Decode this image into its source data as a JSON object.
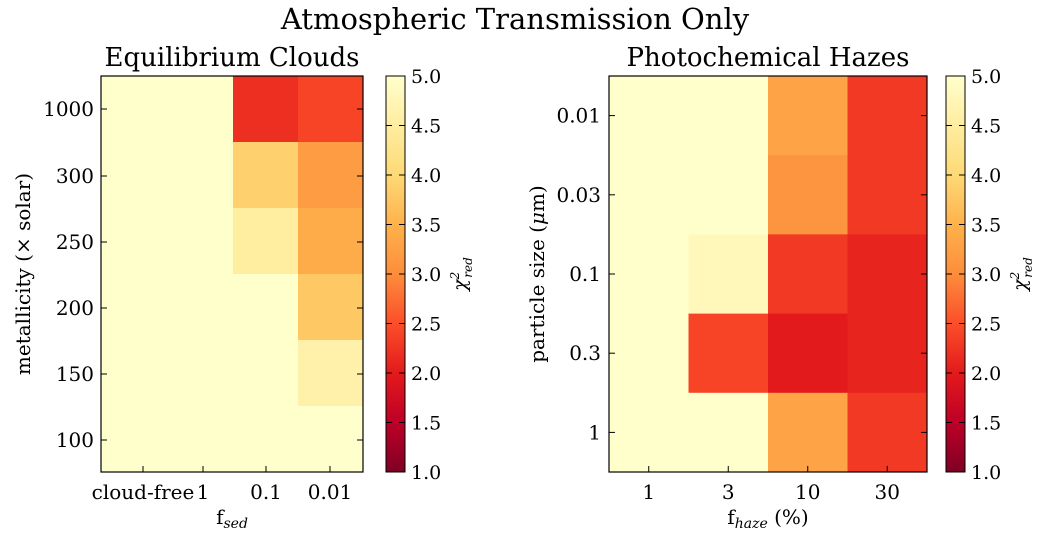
{
  "suptitle": "Atmospheric Transmission Only",
  "colorbar": {
    "label": "χ²red",
    "ticks": [
      "5.0",
      "4.5",
      "4.0",
      "3.5",
      "3.0",
      "2.5",
      "2.0",
      "1.5",
      "1.0"
    ],
    "range": [
      1.0,
      5.0
    ],
    "colormap": "YlOrRd_r"
  },
  "chart_data": [
    {
      "type": "heatmap",
      "title": "Equilibrium Clouds",
      "xlabel": "f_sed",
      "ylabel": "metallicity (× solar)",
      "x": [
        "cloud-free",
        "1",
        "0.1",
        "0.01"
      ],
      "y": [
        "1000",
        "300",
        "250",
        "200",
        "150",
        "100"
      ],
      "values": [
        [
          5.0,
          5.0,
          2.2,
          2.4
        ],
        [
          5.0,
          5.0,
          3.9,
          3.2
        ],
        [
          5.0,
          5.0,
          4.5,
          3.4
        ],
        [
          5.0,
          5.0,
          5.0,
          3.8
        ],
        [
          5.0,
          5.0,
          5.0,
          4.6
        ],
        [
          5.0,
          5.0,
          5.0,
          5.0
        ]
      ],
      "zlim": [
        1.0,
        5.0
      ]
    },
    {
      "type": "heatmap",
      "title": "Photochemical Hazes",
      "xlabel": "f_haze (%)",
      "ylabel": "particle size (μm)",
      "x": [
        "1",
        "3",
        "10",
        "30"
      ],
      "y": [
        "0.01",
        "0.03",
        "0.1",
        "0.3",
        "1"
      ],
      "values": [
        [
          5.0,
          5.0,
          3.3,
          2.3
        ],
        [
          5.0,
          5.0,
          3.1,
          2.3
        ],
        [
          5.0,
          4.8,
          2.3,
          2.1
        ],
        [
          5.0,
          2.4,
          2.0,
          2.1
        ],
        [
          5.0,
          5.0,
          3.3,
          2.3
        ]
      ],
      "zlim": [
        1.0,
        5.0
      ]
    }
  ]
}
